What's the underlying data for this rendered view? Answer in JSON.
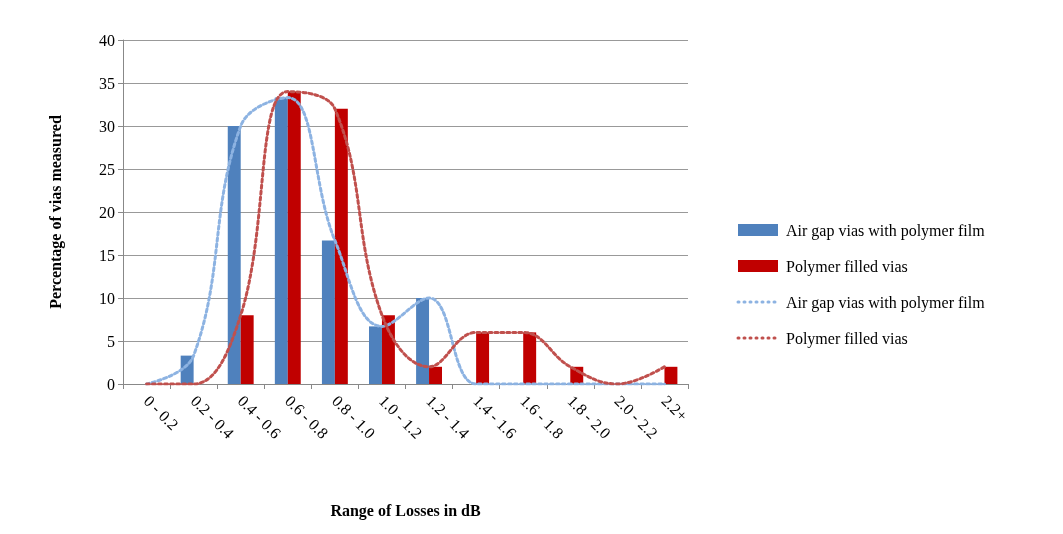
{
  "chart_data": {
    "type": "bar",
    "xlabel": "Range of Losses in dB",
    "ylabel": "Percentage of vias measured",
    "categories": [
      "0 - 0.2",
      "0.2 - 0.4",
      "0.4 - 0.6",
      "0.6 - 0.8",
      "0.8 - 1.0",
      "1.0 - 1.2",
      "1.2 - 1.4",
      "1.4 - 1.6",
      "1.6 - 1.8",
      "1.8 - 2.0",
      "2.0 - 2.2",
      "2.2+"
    ],
    "series": [
      {
        "name": "Air gap vias with polymer film",
        "color": "#4f81bd",
        "values": [
          0,
          3.3,
          30,
          33.3,
          16.7,
          6.7,
          10,
          0,
          0,
          0,
          0,
          0
        ]
      },
      {
        "name": "Polymer filled vias",
        "color": "#c00000",
        "values": [
          0,
          0,
          8,
          34,
          32,
          8,
          2,
          6,
          6,
          2,
          0,
          2
        ]
      },
      {
        "type": "line",
        "line_style": "dotted",
        "name": "Air gap vias with polymer film",
        "color": "#8db3e2",
        "values": [
          0,
          3.3,
          30,
          33.3,
          16.7,
          6.7,
          10,
          0,
          0,
          0,
          0,
          0
        ]
      },
      {
        "type": "line",
        "line_style": "dotted",
        "name": "Polymer filled vias",
        "color": "#c0504d",
        "values": [
          0,
          0,
          8,
          34,
          32,
          8,
          2,
          6,
          6,
          2,
          0,
          2
        ]
      }
    ],
    "ylim": [
      0,
      40
    ],
    "yticks": [
      0,
      5,
      10,
      15,
      20,
      25,
      30,
      35,
      40
    ],
    "grid": "y",
    "legend": "right"
  }
}
